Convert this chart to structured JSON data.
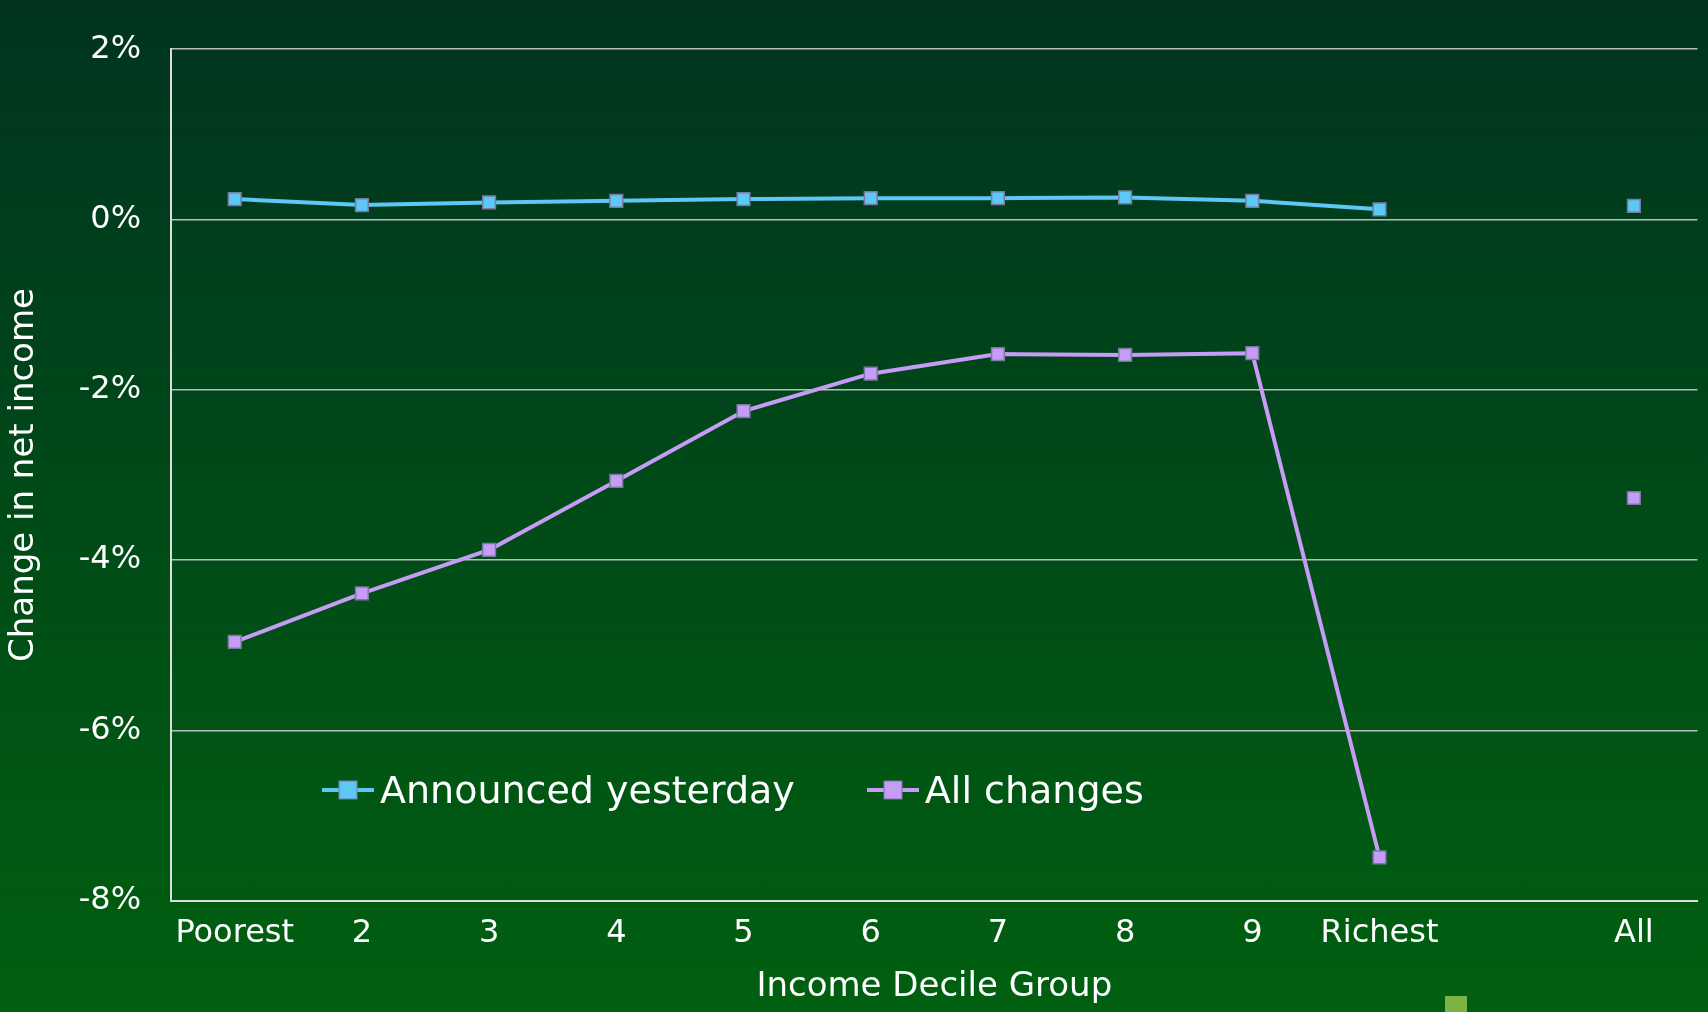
{
  "chart_data": {
    "type": "line",
    "xlabel": "Income Decile Group",
    "ylabel": "Change in net income",
    "categories": [
      "Poorest",
      "2",
      "3",
      "4",
      "5",
      "6",
      "7",
      "8",
      "9",
      "Richest",
      null,
      "All"
    ],
    "series": [
      {
        "name": "Announced yesterday",
        "color": "#5bc8f5",
        "values": [
          0.24,
          0.17,
          0.2,
          0.22,
          0.24,
          0.25,
          0.25,
          0.26,
          0.22,
          0.12,
          null,
          0.16
        ]
      },
      {
        "name": "All changes",
        "color": "#c79cf7",
        "values": [
          -4.96,
          -4.39,
          -3.88,
          -3.07,
          -2.25,
          -1.81,
          -1.58,
          -1.59,
          -1.57,
          -7.49,
          null,
          -3.27
        ]
      }
    ],
    "ylim": [
      -8,
      2
    ],
    "yticks": [
      {
        "value": -8,
        "label": "-8%"
      },
      {
        "value": -6,
        "label": "-6%"
      },
      {
        "value": -4,
        "label": "-4%"
      },
      {
        "value": -2,
        "label": "-2%"
      },
      {
        "value": 0,
        "label": "0%"
      },
      {
        "value": 2,
        "label": "2%"
      }
    ],
    "grid": "y",
    "legend": "bottom left",
    "marker": "square",
    "line_style": "solid"
  }
}
